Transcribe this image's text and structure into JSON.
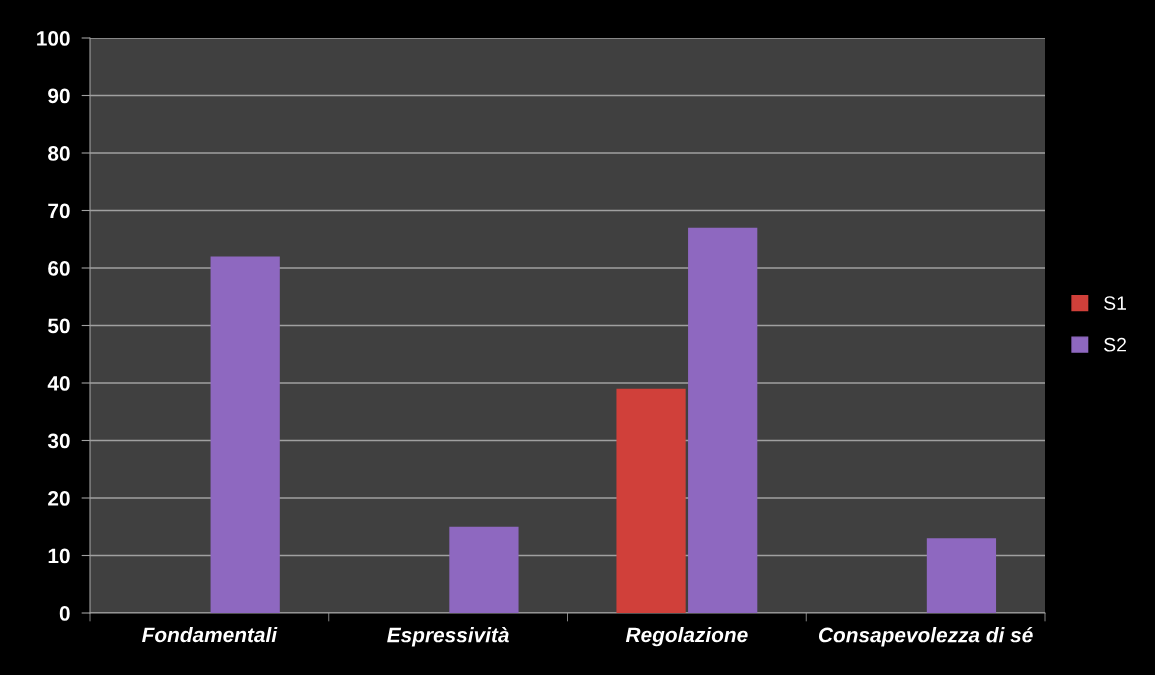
{
  "chart_data": {
    "type": "bar",
    "categories": [
      "Fondamentali",
      "Espressività",
      "Regolazione",
      "Consapevolezza di sé"
    ],
    "series": [
      {
        "name": "S1",
        "color": "#d0403a",
        "values": [
          null,
          null,
          39,
          null
        ]
      },
      {
        "name": "S2",
        "color": "#8e68c0",
        "values": [
          62,
          15,
          67,
          13
        ]
      }
    ],
    "ylim": [
      0,
      100
    ],
    "yticks": [
      0,
      10,
      20,
      30,
      40,
      50,
      60,
      70,
      80,
      90,
      100
    ],
    "grid": "y",
    "legend": "right"
  }
}
